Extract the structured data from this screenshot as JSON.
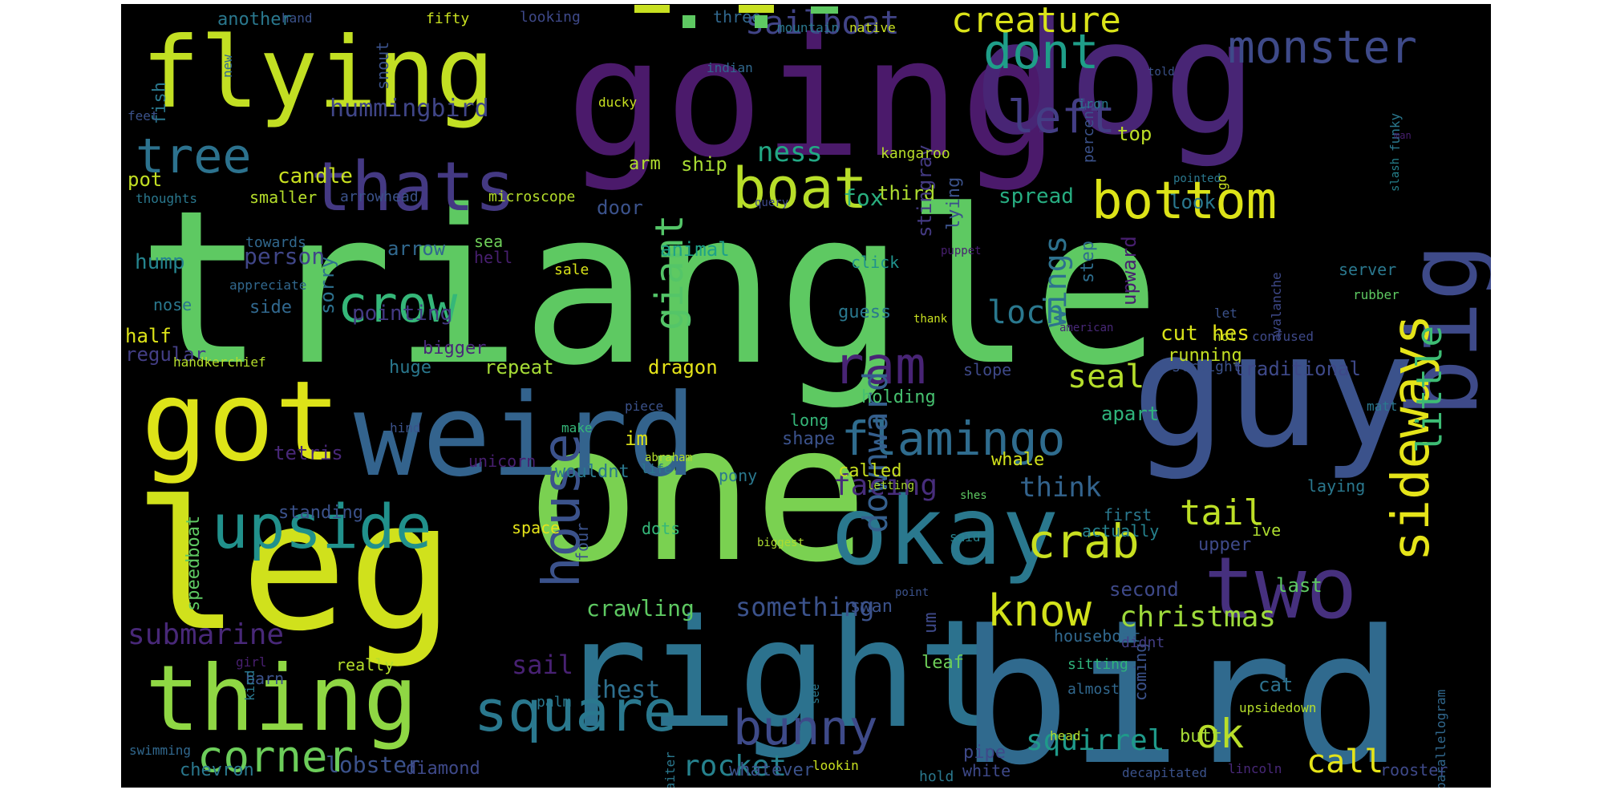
{
  "background_color": "#000000",
  "palette": [
    "#440154",
    "#482878",
    "#3e4989",
    "#31688e",
    "#26828e",
    "#1f9e89",
    "#35b779",
    "#6ece58",
    "#b5de2b",
    "#fde725"
  ],
  "words": [
    {
      "text": "triangle",
      "color": "#5ec962"
    },
    {
      "text": "going",
      "color": "#4b1a6b"
    },
    {
      "text": "dog",
      "color": "#482575"
    },
    {
      "text": "one",
      "color": "#7ad151"
    },
    {
      "text": "right",
      "color": "#2c728e"
    },
    {
      "text": "bird",
      "color": "#306a8e"
    },
    {
      "text": "guy",
      "color": "#3b528b"
    },
    {
      "text": "leg",
      "color": "#d0e11c"
    },
    {
      "text": "flying",
      "color": "#c2df23"
    },
    {
      "text": "got",
      "color": "#dde318"
    },
    {
      "text": "weird",
      "color": "#33638d"
    },
    {
      "text": "thing",
      "color": "#8fd744"
    },
    {
      "text": "okay",
      "color": "#2a788e"
    },
    {
      "text": "two",
      "color": "#46307e"
    },
    {
      "text": "big",
      "color": "#3e4a89"
    },
    {
      "text": "upside",
      "color": "#21918c"
    },
    {
      "text": "bottom",
      "color": "#dde318"
    },
    {
      "text": "boat",
      "color": "#b8de29"
    },
    {
      "text": "thats",
      "color": "#443983"
    },
    {
      "text": "crow",
      "color": "#35b779"
    },
    {
      "text": "tree",
      "color": "#2c728e"
    },
    {
      "text": "monster",
      "color": "#3e4a89"
    },
    {
      "text": "dont",
      "color": "#1f9e89"
    },
    {
      "text": "left",
      "color": "#433e85"
    },
    {
      "text": "sideways",
      "color": "#e5e419"
    },
    {
      "text": "square",
      "color": "#2a788e"
    },
    {
      "text": "bunny",
      "color": "#3e4a89"
    },
    {
      "text": "house",
      "color": "#3b528b"
    },
    {
      "text": "corner",
      "color": "#6ccd5a"
    },
    {
      "text": "crab",
      "color": "#c8e020"
    },
    {
      "text": "flamingo",
      "color": "#2f6c8e"
    },
    {
      "text": "ram",
      "color": "#482475"
    },
    {
      "text": "know",
      "color": "#d2e21b"
    },
    {
      "text": "ok",
      "color": "#b8de29"
    },
    {
      "text": "giant",
      "color": "#54c568"
    },
    {
      "text": "downward",
      "color": "#355f8d"
    },
    {
      "text": "little",
      "color": "#3dbc74"
    },
    {
      "text": "wings",
      "color": "#2d718e"
    },
    {
      "text": "tail",
      "color": "#bddf26"
    },
    {
      "text": "creature",
      "color": "#dae319"
    },
    {
      "text": "sailboat",
      "color": "#414487"
    },
    {
      "text": "loch",
      "color": "#2a788e"
    },
    {
      "text": "seal",
      "color": "#b5de2b"
    },
    {
      "text": "rocket",
      "color": "#26828e"
    },
    {
      "text": "call",
      "color": "#e5e419"
    },
    {
      "text": "squirrel",
      "color": "#1f9a8a"
    },
    {
      "text": "christmas",
      "color": "#9dd93b"
    },
    {
      "text": "facing",
      "color": "#472d7b"
    },
    {
      "text": "something",
      "color": "#3b528b"
    },
    {
      "text": "submarine",
      "color": "#482878"
    },
    {
      "text": "hummingbird",
      "color": "#404688"
    },
    {
      "text": "ness",
      "color": "#22a884"
    },
    {
      "text": "think",
      "color": "#33638d"
    },
    {
      "text": "crawling",
      "color": "#5ec962"
    },
    {
      "text": "chest",
      "color": "#2e6f8e"
    },
    {
      "text": "sail",
      "color": "#482173"
    },
    {
      "text": "person",
      "color": "#404688"
    },
    {
      "text": "pointing",
      "color": "#443983"
    },
    {
      "text": "candle",
      "color": "#c8e020"
    },
    {
      "text": "pot",
      "color": "#c2df23"
    },
    {
      "text": "hump",
      "color": "#25848e"
    },
    {
      "text": "arrow",
      "color": "#31688e"
    },
    {
      "text": "animal",
      "color": "#1fa188"
    },
    {
      "text": "ship",
      "color": "#a8db34"
    },
    {
      "text": "fox",
      "color": "#29af7f"
    },
    {
      "text": "arm",
      "color": "#b0dd2f"
    },
    {
      "text": "door",
      "color": "#3b528b"
    },
    {
      "text": "spread",
      "color": "#27ad81"
    },
    {
      "text": "look",
      "color": "#2a788e"
    },
    {
      "text": "third",
      "color": "#addc30"
    },
    {
      "text": "top",
      "color": "#bddf26"
    },
    {
      "text": "cut",
      "color": "#d8e219"
    },
    {
      "text": "hes",
      "color": "#e5e419"
    },
    {
      "text": "running",
      "color": "#c2df23"
    },
    {
      "text": "upward",
      "color": "#481f70"
    },
    {
      "text": "step",
      "color": "#2e6e8e"
    },
    {
      "text": "whale",
      "color": "#d2e21b"
    },
    {
      "text": "apart",
      "color": "#2fb47c"
    },
    {
      "text": "traditional",
      "color": "#3e4989"
    },
    {
      "text": "holding",
      "color": "#46c06f"
    },
    {
      "text": "dragon",
      "color": "#e5e419"
    },
    {
      "text": "repeat",
      "color": "#a5db36"
    },
    {
      "text": "huge",
      "color": "#2a788e"
    },
    {
      "text": "bigger",
      "color": "#482878"
    },
    {
      "text": "regular",
      "color": "#433e85"
    },
    {
      "text": "half",
      "color": "#dde318"
    },
    {
      "text": "stingray",
      "color": "#443a83"
    },
    {
      "text": "lying",
      "color": "#3b528b"
    },
    {
      "text": "kangaroo",
      "color": "#b8de29"
    },
    {
      "text": "microscope",
      "color": "#b5de2b"
    },
    {
      "text": "arrowhead",
      "color": "#3b528b"
    },
    {
      "text": "smaller",
      "color": "#b5de2b"
    },
    {
      "text": "thoughts",
      "color": "#2a788e"
    },
    {
      "text": "towards",
      "color": "#31688e"
    },
    {
      "text": "appreciate",
      "color": "#31688e"
    },
    {
      "text": "nose",
      "color": "#2a788e"
    },
    {
      "text": "side",
      "color": "#31688e"
    },
    {
      "text": "sorry",
      "color": "#2d718e"
    },
    {
      "text": "sea",
      "color": "#6ece58"
    },
    {
      "text": "hell",
      "color": "#481f70"
    },
    {
      "text": "sale",
      "color": "#d8e219"
    },
    {
      "text": "guess",
      "color": "#2a788e"
    },
    {
      "text": "click",
      "color": "#20928c"
    },
    {
      "text": "thank",
      "color": "#c8e020"
    },
    {
      "text": "slope",
      "color": "#3e4989"
    },
    {
      "text": "shape",
      "color": "#3b528b"
    },
    {
      "text": "long",
      "color": "#35b779"
    },
    {
      "text": "called",
      "color": "#c8e020"
    },
    {
      "text": "pony",
      "color": "#2a788e"
    },
    {
      "text": "im",
      "color": "#dde318"
    },
    {
      "text": "wouldnt",
      "color": "#2a788e"
    },
    {
      "text": "unicorn",
      "color": "#481f70"
    },
    {
      "text": "tetris",
      "color": "#482878"
    },
    {
      "text": "standing",
      "color": "#3b528b"
    },
    {
      "text": "speedboat",
      "color": "#5ec962"
    },
    {
      "text": "space",
      "color": "#e5e419"
    },
    {
      "text": "four",
      "color": "#3b528b"
    },
    {
      "text": "dots",
      "color": "#35b779"
    },
    {
      "text": "swan",
      "color": "#3b528b"
    },
    {
      "text": "first",
      "color": "#2a788e"
    },
    {
      "text": "actually",
      "color": "#26828e"
    },
    {
      "text": "second",
      "color": "#3e4989"
    },
    {
      "text": "last",
      "color": "#5ec962"
    },
    {
      "text": "upper",
      "color": "#3e4989"
    },
    {
      "text": "ive",
      "color": "#addc30"
    },
    {
      "text": "houseboat",
      "color": "#31688e"
    },
    {
      "text": "cat",
      "color": "#2d718e"
    },
    {
      "text": "coming",
      "color": "#3b528b"
    },
    {
      "text": "butt",
      "color": "#a5db36"
    },
    {
      "text": "upsidedown",
      "color": "#b5de2b"
    },
    {
      "text": "parallelogram",
      "color": "#31688e"
    },
    {
      "text": "rooster",
      "color": "#3e4989"
    },
    {
      "text": "decapitated",
      "color": "#3b528b"
    },
    {
      "text": "lincoln",
      "color": "#482878"
    },
    {
      "text": "white",
      "color": "#3e4989"
    },
    {
      "text": "hold",
      "color": "#2a788e"
    },
    {
      "text": "pipe",
      "color": "#3e4989"
    },
    {
      "text": "leaf",
      "color": "#6ece58"
    },
    {
      "text": "sitting",
      "color": "#2fb47c"
    },
    {
      "text": "didnt",
      "color": "#433e85"
    },
    {
      "text": "almost",
      "color": "#31688e"
    },
    {
      "text": "head",
      "color": "#b5de2b"
    },
    {
      "text": "lobster",
      "color": "#3b528b"
    },
    {
      "text": "chevron",
      "color": "#2a788e"
    },
    {
      "text": "diamond",
      "color": "#3e4989"
    },
    {
      "text": "whatever",
      "color": "#3b528b"
    },
    {
      "text": "lookin",
      "color": "#c8e020"
    },
    {
      "text": "swimming",
      "color": "#31688e"
    },
    {
      "text": "really",
      "color": "#b5de2b"
    },
    {
      "text": "palm",
      "color": "#2a788e"
    },
    {
      "text": "see",
      "color": "#2a788e"
    },
    {
      "text": "waiter",
      "color": "#2a788e"
    },
    {
      "text": "barn",
      "color": "#3b528b"
    },
    {
      "text": "girl",
      "color": "#481f70"
    },
    {
      "text": "kind",
      "color": "#2a788e"
    },
    {
      "text": "um",
      "color": "#3e4989"
    },
    {
      "text": "point",
      "color": "#3b528b"
    },
    {
      "text": "biggest",
      "color": "#addc30"
    },
    {
      "text": "said",
      "color": "#26828e"
    },
    {
      "text": "shes",
      "color": "#5ec962"
    },
    {
      "text": "letting",
      "color": "#addc30"
    },
    {
      "text": "laying",
      "color": "#2a788e"
    },
    {
      "text": "life",
      "color": "#2a788e"
    },
    {
      "text": "abraham",
      "color": "#b5de2b"
    },
    {
      "text": "make",
      "color": "#35b779"
    },
    {
      "text": "piece",
      "color": "#3b528b"
    },
    {
      "text": "hind",
      "color": "#3b528b"
    },
    {
      "text": "matt",
      "color": "#2a788e"
    },
    {
      "text": "straight",
      "color": "#3b528b"
    },
    {
      "text": "hot",
      "color": "#c8e020"
    },
    {
      "text": "confused",
      "color": "#3e4989"
    },
    {
      "text": "american",
      "color": "#482878"
    },
    {
      "text": "let",
      "color": "#3b528b"
    },
    {
      "text": "avalanche",
      "color": "#3e4989"
    },
    {
      "text": "rubber",
      "color": "#5ec962"
    },
    {
      "text": "server",
      "color": "#2a788e"
    },
    {
      "text": "puppet",
      "color": "#481f70"
    },
    {
      "text": "query",
      "color": "#3e4989"
    },
    {
      "text": "pointed",
      "color": "#2a788e"
    },
    {
      "text": "go",
      "color": "#c8e020"
    },
    {
      "text": "slash",
      "color": "#26828e"
    },
    {
      "text": "funky",
      "color": "#2a788e"
    },
    {
      "text": "man",
      "color": "#481f70"
    },
    {
      "text": "percent",
      "color": "#3b528b"
    },
    {
      "text": "iron",
      "color": "#2a788e"
    },
    {
      "text": "told",
      "color": "#3b528b"
    },
    {
      "text": "native",
      "color": "#c8e020"
    },
    {
      "text": "mountain",
      "color": "#2a788e"
    },
    {
      "text": "three",
      "color": "#31688e"
    },
    {
      "text": "indian",
      "color": "#31688e"
    },
    {
      "text": "ducky",
      "color": "#c8e020"
    },
    {
      "text": "new",
      "color": "#31688e"
    },
    {
      "text": "fifty",
      "color": "#c8e020"
    },
    {
      "text": "looking",
      "color": "#3e4989"
    },
    {
      "text": "hand",
      "color": "#3b528b"
    },
    {
      "text": "another",
      "color": "#2a788e"
    },
    {
      "text": "snout",
      "color": "#3b528b"
    },
    {
      "text": "fish",
      "color": "#2a788e"
    },
    {
      "text": "feet",
      "color": "#3b528b"
    },
    {
      "text": "handkerchief",
      "color": "#b5de2b"
    }
  ]
}
